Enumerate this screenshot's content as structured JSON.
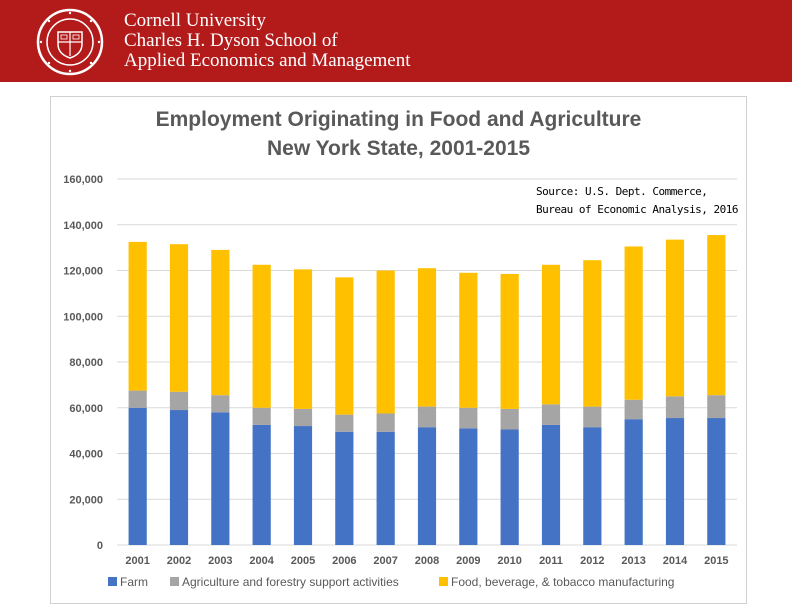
{
  "header": {
    "line1": "Cornell University",
    "line2": "Charles H. Dyson School of",
    "line3": "Applied Economics and Management",
    "colors": {
      "banner": "#b31b1b",
      "text": "#ffffff"
    },
    "seal_icon": "cornell-seal-icon"
  },
  "source": {
    "line1": "Source:  U.S. Dept. Commerce,",
    "line2": "Bureau of Economic Analysis, 2016"
  },
  "chart_data": {
    "type": "bar",
    "stacked": true,
    "title_line1": "Employment Originating in Food and Agriculture",
    "title_line2": "New York State, 2001-2015",
    "xlabel": "",
    "ylabel": "",
    "ylim": [
      0,
      160000
    ],
    "yticks": [
      0,
      20000,
      40000,
      60000,
      80000,
      100000,
      120000,
      140000,
      160000
    ],
    "ytick_labels": [
      "0",
      "20,000",
      "40,000",
      "60,000",
      "80,000",
      "100,000",
      "120,000",
      "140,000",
      "160,000"
    ],
    "grid": true,
    "legend_position": "bottom",
    "categories": [
      "2001",
      "2002",
      "2003",
      "2004",
      "2005",
      "2006",
      "2007",
      "2008",
      "2009",
      "2010",
      "2011",
      "2012",
      "2013",
      "2014",
      "2015"
    ],
    "series": [
      {
        "name": "Farm",
        "color": "#4472c4",
        "values": [
          60000,
          59000,
          58000,
          52500,
          52000,
          49500,
          49500,
          51500,
          51000,
          50500,
          52500,
          51500,
          55000,
          55500,
          55500
        ]
      },
      {
        "name": "Agriculture and forestry support activities",
        "color": "#a5a5a5",
        "values": [
          7500,
          8000,
          7500,
          7500,
          7500,
          7500,
          8000,
          9000,
          9000,
          9000,
          9000,
          9000,
          8500,
          9500,
          10000
        ]
      },
      {
        "name": "Food, beverage, & tobacco manufacturing",
        "color": "#ffc000",
        "values": [
          65000,
          64500,
          63500,
          62500,
          61000,
          60000,
          62500,
          60500,
          59000,
          59000,
          61000,
          64000,
          67000,
          68500,
          70000
        ]
      }
    ]
  }
}
